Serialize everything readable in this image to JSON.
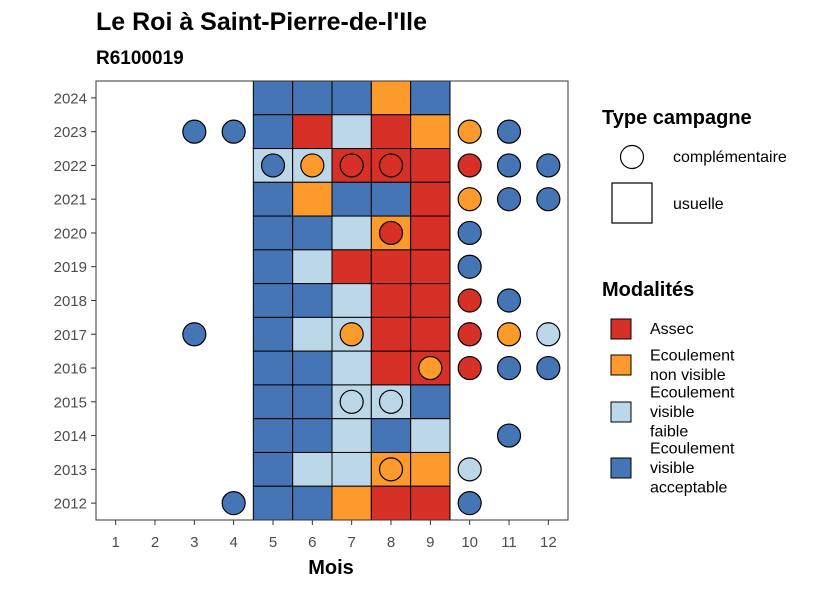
{
  "chart_data": {
    "type": "heatmap",
    "title": "Le Roi à Saint-Pierre-de-l'Ile",
    "subtitle": "R6100019",
    "xlabel": "Mois",
    "ylabel": "",
    "x_ticks": [
      "1",
      "2",
      "3",
      "4",
      "5",
      "6",
      "7",
      "8",
      "9",
      "10",
      "11",
      "12"
    ],
    "y_ticks": [
      "2012",
      "2013",
      "2014",
      "2015",
      "2016",
      "2017",
      "2018",
      "2019",
      "2020",
      "2021",
      "2022",
      "2023",
      "2024"
    ],
    "xlim": [
      0.5,
      12.5
    ],
    "ylim": [
      2011.5,
      2024.5
    ],
    "grid": false,
    "legend_position": "right",
    "legend_type": {
      "title": "Type campagne",
      "items": [
        {
          "key": "complementaire",
          "label": "complémentaire",
          "shape": "circle"
        },
        {
          "key": "usuelle",
          "label": "usuelle",
          "shape": "square"
        }
      ]
    },
    "legend_modalites": {
      "title": "Modalités",
      "items": [
        {
          "key": "A",
          "lines": [
            "Assec"
          ],
          "color": "#d73027"
        },
        {
          "key": "N",
          "lines": [
            "Ecoulement",
            "non visible"
          ],
          "color": "#fd9a2c"
        },
        {
          "key": "F",
          "lines": [
            "Ecoulement",
            "visible",
            "faible"
          ],
          "color": "#bcd7e7"
        },
        {
          "key": "V",
          "lines": [
            "Ecoulement",
            "visible",
            "acceptable"
          ],
          "color": "#4575b4"
        }
      ]
    },
    "usuelle": {
      "months": [
        5,
        6,
        7,
        8,
        9
      ],
      "rows": [
        {
          "year": 2024,
          "values": [
            "V",
            "V",
            "V",
            "N",
            "V"
          ]
        },
        {
          "year": 2023,
          "values": [
            "V",
            "A",
            "F",
            "A",
            "N"
          ]
        },
        {
          "year": 2022,
          "values": [
            "F",
            "F",
            "A",
            "A",
            "A"
          ]
        },
        {
          "year": 2021,
          "values": [
            "V",
            "N",
            "V",
            "V",
            "A"
          ]
        },
        {
          "year": 2020,
          "values": [
            "V",
            "V",
            "F",
            "N",
            "A"
          ]
        },
        {
          "year": 2019,
          "values": [
            "V",
            "F",
            "A",
            "A",
            "A"
          ]
        },
        {
          "year": 2018,
          "values": [
            "V",
            "V",
            "F",
            "A",
            "A"
          ]
        },
        {
          "year": 2017,
          "values": [
            "V",
            "F",
            "F",
            "A",
            "A"
          ]
        },
        {
          "year": 2016,
          "values": [
            "V",
            "V",
            "F",
            "A",
            "A"
          ]
        },
        {
          "year": 2015,
          "values": [
            "V",
            "V",
            "F",
            "F",
            "V"
          ]
        },
        {
          "year": 2014,
          "values": [
            "V",
            "V",
            "F",
            "V",
            "F"
          ]
        },
        {
          "year": 2013,
          "values": [
            "V",
            "F",
            "F",
            "N",
            "N"
          ]
        },
        {
          "year": 2012,
          "values": [
            "V",
            "V",
            "N",
            "A",
            "A"
          ]
        }
      ]
    },
    "complementaire": [
      {
        "year": 2023,
        "month": 3,
        "value": "V"
      },
      {
        "year": 2023,
        "month": 4,
        "value": "V"
      },
      {
        "year": 2023,
        "month": 10,
        "value": "N"
      },
      {
        "year": 2023,
        "month": 11,
        "value": "V"
      },
      {
        "year": 2022,
        "month": 5,
        "value": "V"
      },
      {
        "year": 2022,
        "month": 6,
        "value": "N"
      },
      {
        "year": 2022,
        "month": 7,
        "value": "A"
      },
      {
        "year": 2022,
        "month": 8,
        "value": "A"
      },
      {
        "year": 2022,
        "month": 10,
        "value": "A"
      },
      {
        "year": 2022,
        "month": 11,
        "value": "V"
      },
      {
        "year": 2022,
        "month": 12,
        "value": "V"
      },
      {
        "year": 2021,
        "month": 10,
        "value": "N"
      },
      {
        "year": 2021,
        "month": 11,
        "value": "V"
      },
      {
        "year": 2021,
        "month": 12,
        "value": "V"
      },
      {
        "year": 2020,
        "month": 8,
        "value": "A"
      },
      {
        "year": 2020,
        "month": 10,
        "value": "V"
      },
      {
        "year": 2019,
        "month": 10,
        "value": "V"
      },
      {
        "year": 2018,
        "month": 10,
        "value": "A"
      },
      {
        "year": 2018,
        "month": 11,
        "value": "V"
      },
      {
        "year": 2017,
        "month": 3,
        "value": "V"
      },
      {
        "year": 2017,
        "month": 7,
        "value": "N"
      },
      {
        "year": 2017,
        "month": 10,
        "value": "A"
      },
      {
        "year": 2017,
        "month": 11,
        "value": "N"
      },
      {
        "year": 2017,
        "month": 12,
        "value": "F"
      },
      {
        "year": 2016,
        "month": 9,
        "value": "N"
      },
      {
        "year": 2016,
        "month": 10,
        "value": "A"
      },
      {
        "year": 2016,
        "month": 11,
        "value": "V"
      },
      {
        "year": 2016,
        "month": 12,
        "value": "V"
      },
      {
        "year": 2015,
        "month": 7,
        "value": "F"
      },
      {
        "year": 2015,
        "month": 8,
        "value": "F"
      },
      {
        "year": 2014,
        "month": 11,
        "value": "V"
      },
      {
        "year": 2013,
        "month": 8,
        "value": "N"
      },
      {
        "year": 2013,
        "month": 10,
        "value": "F"
      },
      {
        "year": 2012,
        "month": 4,
        "value": "V"
      },
      {
        "year": 2012,
        "month": 10,
        "value": "V"
      }
    ]
  }
}
